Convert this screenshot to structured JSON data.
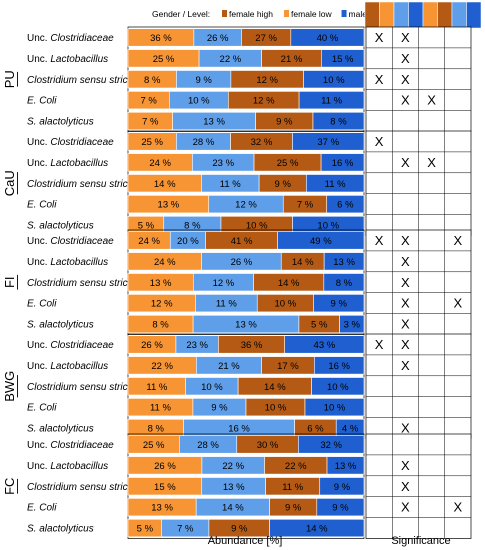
{
  "chart_data": {
    "type": "bar",
    "stacked": true,
    "orientation": "horizontal",
    "xlabel": "Abundance [%]",
    "significance_label": "Significance",
    "legend": {
      "title": "Gender / Level:",
      "entries": [
        {
          "name": "female high",
          "color": "#b55a14"
        },
        {
          "name": "female low",
          "color": "#f79433"
        },
        {
          "name": "male high",
          "color": "#1f5fcf"
        },
        {
          "name": "male low",
          "color": "#5f9ee8"
        }
      ],
      "swatch_colors": [
        "#b55a14",
        "#f79433",
        "#5f9ee8",
        "#1f5fcf",
        "#f79433",
        "#b55a14",
        "#5f9ee8",
        "#1f5fcf"
      ]
    },
    "segment_order": [
      "female low",
      "male low",
      "female high",
      "male high"
    ],
    "groups": [
      {
        "name": "PU",
        "rows": [
          {
            "taxon": "Unc. ",
            "italic": "Clostridiaceae",
            "values": [
              36,
              26,
              27,
              40
            ],
            "marks": [
              "X",
              "X",
              "",
              ""
            ]
          },
          {
            "taxon": "Unc. ",
            "italic": "Lactobacillus",
            "values": [
              25,
              22,
              21,
              15
            ],
            "marks": [
              "",
              "X",
              "",
              ""
            ]
          },
          {
            "taxon": "",
            "italic": "Clostridium sensu stricto",
            "values": [
              8,
              9,
              12,
              10
            ],
            "marks": [
              "X",
              "X",
              "",
              ""
            ]
          },
          {
            "taxon": "",
            "italic": "E. Coli",
            "values": [
              7,
              10,
              12,
              11
            ],
            "marks": [
              "",
              "X",
              "X",
              ""
            ]
          },
          {
            "taxon": "",
            "italic": "S. alactolyticus",
            "values": [
              7,
              13,
              9,
              8
            ],
            "marks": [
              "",
              "",
              "",
              ""
            ]
          }
        ]
      },
      {
        "name": "CaU",
        "rows": [
          {
            "taxon": "Unc. ",
            "italic": "Clostridiaceae",
            "values": [
              25,
              28,
              32,
              37
            ],
            "marks": [
              "X",
              "",
              "",
              ""
            ]
          },
          {
            "taxon": "Unc. ",
            "italic": "Lactobacillus",
            "values": [
              24,
              23,
              25,
              16
            ],
            "marks": [
              "",
              "X",
              "X",
              ""
            ]
          },
          {
            "taxon": "",
            "italic": "Clostridium sensu stricto",
            "values": [
              14,
              11,
              9,
              11
            ],
            "marks": [
              "",
              "",
              "",
              ""
            ]
          },
          {
            "taxon": "",
            "italic": "E. Coli",
            "values": [
              13,
              12,
              7,
              6
            ],
            "marks": [
              "",
              "",
              "",
              ""
            ]
          },
          {
            "taxon": "",
            "italic": "S. alactolyticus",
            "values": [
              5,
              8,
              10,
              10
            ],
            "marks": [
              "",
              "",
              "",
              ""
            ]
          }
        ]
      },
      {
        "name": "FI",
        "rows": [
          {
            "taxon": "Unc. ",
            "italic": "Clostridiaceae",
            "values": [
              24,
              20,
              41,
              49
            ],
            "marks": [
              "X",
              "X",
              "",
              "X"
            ]
          },
          {
            "taxon": "Unc. ",
            "italic": "Lactobacillus",
            "values": [
              24,
              26,
              14,
              13
            ],
            "marks": [
              "",
              "X",
              "",
              ""
            ]
          },
          {
            "taxon": "",
            "italic": "Clostridium sensu stricto",
            "values": [
              13,
              12,
              14,
              8
            ],
            "marks": [
              "",
              "X",
              "",
              ""
            ]
          },
          {
            "taxon": "",
            "italic": "E. Coli",
            "values": [
              12,
              11,
              10,
              9
            ],
            "marks": [
              "",
              "X",
              "",
              "X"
            ]
          },
          {
            "taxon": "",
            "italic": "S. alactolyticus",
            "values": [
              8,
              13,
              5,
              3
            ],
            "marks": [
              "",
              "X",
              "",
              ""
            ]
          }
        ]
      },
      {
        "name": "BWG",
        "rows": [
          {
            "taxon": "Unc. ",
            "italic": "Clostridiaceae",
            "values": [
              26,
              23,
              36,
              43
            ],
            "marks": [
              "X",
              "X",
              "",
              ""
            ]
          },
          {
            "taxon": "Unc. ",
            "italic": "Lactobacillus",
            "values": [
              22,
              21,
              17,
              16
            ],
            "marks": [
              "",
              "X",
              "",
              ""
            ]
          },
          {
            "taxon": "",
            "italic": "Clostridium sensu stricto",
            "values": [
              11,
              10,
              14,
              10
            ],
            "marks": [
              "",
              "",
              "",
              ""
            ]
          },
          {
            "taxon": "",
            "italic": "E. Coli",
            "values": [
              11,
              9,
              10,
              10
            ],
            "marks": [
              "",
              "",
              "",
              ""
            ]
          },
          {
            "taxon": "",
            "italic": "S. alactolyticus",
            "values": [
              8,
              16,
              6,
              4
            ],
            "marks": [
              "",
              "X",
              "",
              ""
            ]
          }
        ]
      },
      {
        "name": "FC",
        "rows": [
          {
            "taxon": "Unc. ",
            "italic": "Clostridiaceae",
            "values": [
              25,
              28,
              30,
              32
            ],
            "marks": [
              "",
              "",
              "",
              ""
            ]
          },
          {
            "taxon": "Unc. ",
            "italic": "Lactobacillus",
            "values": [
              26,
              22,
              22,
              13
            ],
            "marks": [
              "",
              "X",
              "",
              ""
            ]
          },
          {
            "taxon": "",
            "italic": "Clostridium sensu stricto",
            "values": [
              15,
              13,
              11,
              9
            ],
            "marks": [
              "",
              "X",
              "",
              ""
            ]
          },
          {
            "taxon": "",
            "italic": "E. Coli",
            "values": [
              13,
              14,
              9,
              9
            ],
            "marks": [
              "",
              "X",
              "",
              "X"
            ]
          },
          {
            "taxon": "",
            "italic": "S. alactolyticus",
            "values": [
              5,
              7,
              9,
              14
            ],
            "marks": [
              "",
              "",
              "",
              ""
            ]
          }
        ]
      }
    ]
  }
}
